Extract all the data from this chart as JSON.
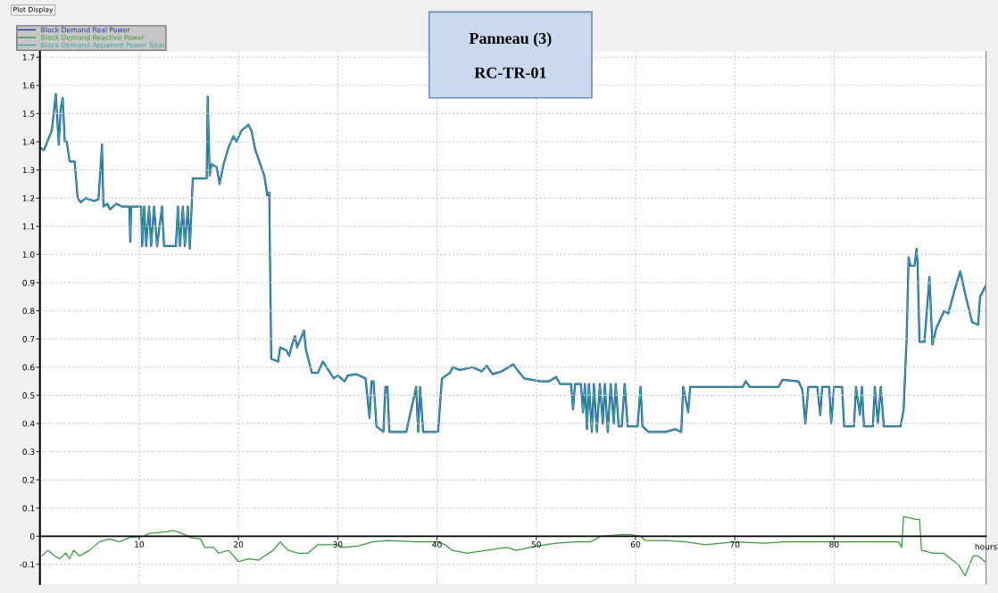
{
  "chart_data": {
    "type": "line",
    "title": "Panneau (3)",
    "subtitle": "RC-TR-01",
    "xlabel": "hours",
    "annotations": [
      "Plot Display"
    ],
    "xlim": [
      0,
      95.3
    ],
    "xticks": [
      10,
      20,
      30,
      40,
      50,
      60,
      70,
      80
    ],
    "ylim": [
      -0.17,
      1.72
    ],
    "yticks": [
      -0.1,
      0,
      0.1,
      0.2,
      0.3,
      0.4,
      0.5,
      0.6,
      0.7,
      0.8,
      0.9,
      {
        "value": 1.0,
        "label": "1.0"
      },
      1.1,
      1.2,
      1.3,
      1.4,
      1.5,
      1.6,
      1.7
    ],
    "grid": true,
    "legend": "top left",
    "line_style": "solid",
    "marker": "none",
    "series": [
      {
        "name": "Block Demand Apparent Power Total",
        "color": "#3aa6a6",
        "x": [
          0,
          0.4,
          1.2,
          1.6,
          1.9,
          2.1,
          2.3,
          2.5,
          2.7,
          3.0,
          3.5,
          3.8,
          4.1,
          4.6,
          5.4,
          5.9,
          6.25,
          6.4,
          6.8,
          7.05,
          7.7,
          8.3,
          9.0,
          9.1,
          9.2,
          10.2,
          10.3,
          10.5,
          10.7,
          11.0,
          11.2,
          11.5,
          11.8,
          12.3,
          12.5,
          13.7,
          13.9,
          14.1,
          14.4,
          14.6,
          14.9,
          15.1,
          15.4,
          16.8,
          16.9,
          17.1,
          17.3,
          17.8,
          18.1,
          18.5,
          19.0,
          19.5,
          19.8,
          20.3,
          21.0,
          21.3,
          21.7,
          22.1,
          22.6,
          22.9,
          23.1,
          23.2,
          23.3,
          24.0,
          24.2,
          24.8,
          25.1,
          25.4,
          25.7,
          25.9,
          26.6,
          26.8,
          27.4,
          28.0,
          28.5,
          29.6,
          30.0,
          30.7,
          31.0,
          31.9,
          32.8,
          33.2,
          33.4,
          33.6,
          33.9,
          34.6,
          34.8,
          35.0,
          35.2,
          36.9,
          37.9,
          38.1,
          38.3,
          38.6,
          40.1,
          40.5,
          41.3,
          41.6,
          42.3,
          43.6,
          44.5,
          45.0,
          45.6,
          46.5,
          47.7,
          48.3,
          48.8,
          50.4,
          51.3,
          52.0,
          52.4,
          53.5,
          53.7,
          53.9,
          54.5,
          54.7,
          54.9,
          55.1,
          55.3,
          55.6,
          55.8,
          56.1,
          56.4,
          56.7,
          56.9,
          57.2,
          57.5,
          57.8,
          58.0,
          58.3,
          58.6,
          58.9,
          59.2,
          60.2,
          60.5,
          60.7,
          61.3,
          63.0,
          64.0,
          64.6,
          64.8,
          65.3,
          65.5,
          70.8,
          71.1,
          71.5,
          74.4,
          74.8,
          76.4,
          76.8,
          77.1,
          77.4,
          78.3,
          78.6,
          78.8,
          79.5,
          79.7,
          80.0,
          80.8,
          81.0,
          82.0,
          82.2,
          82.6,
          82.8,
          83.0,
          83.9,
          84.1,
          84.4,
          84.7,
          85.0,
          86.7,
          87.0,
          87.3,
          87.5,
          87.7,
          88.1,
          88.3,
          88.4,
          88.6,
          89.1,
          89.6,
          89.9,
          90.3,
          91.1,
          91.5,
          92.1,
          92.7,
          93.2,
          93.9,
          94.5,
          94.7,
          95.3
        ],
        "values": [
          1.38,
          1.37,
          1.44,
          1.57,
          1.39,
          1.52,
          1.555,
          1.4,
          1.4,
          1.33,
          1.33,
          1.2,
          1.185,
          1.2,
          1.19,
          1.195,
          1.39,
          1.17,
          1.18,
          1.16,
          1.18,
          1.17,
          1.17,
          1.045,
          1.17,
          1.17,
          1.03,
          1.17,
          1.03,
          1.17,
          1.03,
          1.17,
          1.03,
          1.17,
          1.03,
          1.03,
          1.17,
          1.03,
          1.17,
          1.03,
          1.17,
          1.02,
          1.27,
          1.27,
          1.56,
          1.28,
          1.32,
          1.31,
          1.25,
          1.32,
          1.38,
          1.42,
          1.4,
          1.44,
          1.46,
          1.44,
          1.37,
          1.33,
          1.28,
          1.21,
          1.22,
          0.92,
          0.63,
          0.62,
          0.67,
          0.66,
          0.64,
          0.68,
          0.71,
          0.67,
          0.73,
          0.66,
          0.58,
          0.58,
          0.62,
          0.56,
          0.57,
          0.55,
          0.57,
          0.575,
          0.56,
          0.42,
          0.55,
          0.55,
          0.39,
          0.37,
          0.53,
          0.53,
          0.37,
          0.37,
          0.53,
          0.37,
          0.53,
          0.37,
          0.37,
          0.56,
          0.58,
          0.6,
          0.59,
          0.6,
          0.585,
          0.605,
          0.575,
          0.585,
          0.61,
          0.58,
          0.56,
          0.55,
          0.55,
          0.565,
          0.54,
          0.54,
          0.45,
          0.54,
          0.54,
          0.44,
          0.54,
          0.38,
          0.54,
          0.37,
          0.54,
          0.37,
          0.54,
          0.4,
          0.54,
          0.37,
          0.54,
          0.4,
          0.54,
          0.39,
          0.39,
          0.54,
          0.39,
          0.39,
          0.53,
          0.39,
          0.37,
          0.37,
          0.38,
          0.37,
          0.53,
          0.44,
          0.53,
          0.53,
          0.55,
          0.53,
          0.53,
          0.555,
          0.55,
          0.52,
          0.4,
          0.53,
          0.53,
          0.43,
          0.53,
          0.53,
          0.4,
          0.53,
          0.53,
          0.39,
          0.39,
          0.53,
          0.43,
          0.53,
          0.39,
          0.39,
          0.53,
          0.4,
          0.53,
          0.39,
          0.39,
          0.45,
          0.7,
          0.99,
          0.96,
          0.96,
          1.02,
          0.97,
          0.69,
          0.69,
          0.92,
          0.68,
          0.74,
          0.8,
          0.79,
          0.87,
          0.94,
          0.86,
          0.76,
          0.75,
          0.85,
          0.89
        ]
      },
      {
        "name": "Block Demand Real Power",
        "color": "#1a3f8f",
        "x": [
          0,
          0.4,
          1.2,
          1.6,
          1.9,
          2.1,
          2.3,
          2.5,
          2.7,
          3.0,
          3.5,
          3.8,
          4.1,
          4.6,
          5.4,
          5.9,
          6.25,
          6.4,
          6.8,
          7.05,
          7.7,
          8.3,
          9.0,
          9.1,
          9.2,
          10.2,
          10.3,
          10.5,
          10.7,
          11.0,
          11.2,
          11.5,
          11.8,
          12.3,
          12.5,
          13.7,
          13.9,
          14.1,
          14.4,
          14.6,
          14.9,
          15.1,
          15.4,
          16.8,
          16.9,
          17.1,
          17.3,
          17.8,
          18.1,
          18.5,
          19.0,
          19.5,
          19.8,
          20.3,
          21.0,
          21.3,
          21.7,
          22.1,
          22.6,
          22.9,
          23.1,
          23.2,
          23.3,
          24.0,
          24.2,
          24.8,
          25.1,
          25.4,
          25.7,
          25.9,
          26.6,
          26.8,
          27.4,
          28.0,
          28.5,
          29.6,
          30.0,
          30.7,
          31.0,
          31.9,
          32.8,
          33.2,
          33.4,
          33.6,
          33.9,
          34.6,
          34.8,
          35.0,
          35.2,
          36.9,
          37.9,
          38.1,
          38.3,
          38.6,
          40.1,
          40.5,
          41.3,
          41.6,
          42.3,
          43.6,
          44.5,
          45.0,
          45.6,
          46.5,
          47.7,
          48.3,
          48.8,
          50.4,
          51.3,
          52.0,
          52.4,
          53.5,
          53.7,
          53.9,
          54.5,
          54.7,
          54.9,
          55.1,
          55.3,
          55.6,
          55.8,
          56.1,
          56.4,
          56.7,
          56.9,
          57.2,
          57.5,
          57.8,
          58.0,
          58.3,
          58.6,
          58.9,
          59.2,
          60.2,
          60.5,
          60.7,
          61.3,
          63.0,
          64.0,
          64.6,
          64.8,
          65.3,
          65.5,
          70.8,
          71.1,
          71.5,
          74.4,
          74.8,
          76.4,
          76.8,
          77.1,
          77.4,
          78.3,
          78.6,
          78.8,
          79.5,
          79.7,
          80.0,
          80.8,
          81.0,
          82.0,
          82.2,
          82.6,
          82.8,
          83.0,
          83.9,
          84.1,
          84.4,
          84.7,
          85.0,
          86.7,
          87.0,
          87.3,
          87.5,
          87.7,
          88.1,
          88.3,
          88.4,
          88.6,
          89.1,
          89.6,
          89.9,
          90.3,
          91.1,
          91.5,
          92.1,
          92.7,
          93.2,
          93.9,
          94.5,
          94.7,
          95.3
        ],
        "values": [
          1.38,
          1.37,
          1.44,
          1.57,
          1.39,
          1.52,
          1.555,
          1.4,
          1.4,
          1.33,
          1.33,
          1.2,
          1.185,
          1.2,
          1.19,
          1.195,
          1.39,
          1.17,
          1.18,
          1.16,
          1.18,
          1.17,
          1.17,
          1.045,
          1.17,
          1.17,
          1.03,
          1.17,
          1.03,
          1.17,
          1.03,
          1.17,
          1.03,
          1.17,
          1.03,
          1.03,
          1.17,
          1.03,
          1.17,
          1.03,
          1.17,
          1.02,
          1.27,
          1.27,
          1.56,
          1.28,
          1.32,
          1.31,
          1.25,
          1.32,
          1.38,
          1.42,
          1.4,
          1.44,
          1.46,
          1.44,
          1.37,
          1.33,
          1.28,
          1.21,
          1.22,
          0.92,
          0.63,
          0.62,
          0.67,
          0.66,
          0.64,
          0.68,
          0.71,
          0.67,
          0.73,
          0.66,
          0.58,
          0.58,
          0.62,
          0.56,
          0.57,
          0.55,
          0.57,
          0.575,
          0.56,
          0.42,
          0.55,
          0.55,
          0.39,
          0.37,
          0.53,
          0.53,
          0.37,
          0.37,
          0.53,
          0.37,
          0.53,
          0.37,
          0.37,
          0.56,
          0.58,
          0.6,
          0.59,
          0.6,
          0.585,
          0.605,
          0.575,
          0.585,
          0.61,
          0.58,
          0.56,
          0.55,
          0.55,
          0.565,
          0.54,
          0.54,
          0.45,
          0.54,
          0.54,
          0.44,
          0.54,
          0.38,
          0.54,
          0.37,
          0.54,
          0.37,
          0.54,
          0.4,
          0.54,
          0.37,
          0.54,
          0.4,
          0.54,
          0.39,
          0.39,
          0.54,
          0.39,
          0.39,
          0.53,
          0.39,
          0.37,
          0.37,
          0.38,
          0.37,
          0.53,
          0.44,
          0.53,
          0.53,
          0.55,
          0.53,
          0.53,
          0.555,
          0.55,
          0.52,
          0.4,
          0.53,
          0.53,
          0.43,
          0.53,
          0.53,
          0.4,
          0.53,
          0.53,
          0.39,
          0.39,
          0.53,
          0.43,
          0.53,
          0.39,
          0.39,
          0.53,
          0.4,
          0.53,
          0.39,
          0.39,
          0.45,
          0.7,
          0.99,
          0.96,
          0.96,
          1.02,
          0.97,
          0.69,
          0.69,
          0.92,
          0.68,
          0.74,
          0.8,
          0.79,
          0.87,
          0.94,
          0.86,
          0.76,
          0.75,
          0.85,
          0.89
        ]
      },
      {
        "name": "Block Demand Reactive Power",
        "color": "#3a9a3a",
        "x": [
          0.2,
          0.8,
          1.5,
          2.0,
          2.6,
          3.0,
          3.4,
          4.0,
          5.0,
          6.0,
          7.0,
          8.0,
          9.0,
          10.5,
          11.0,
          12.5,
          13.5,
          14.3,
          15.2,
          16.2,
          16.6,
          17.5,
          18.0,
          19.0,
          20.0,
          21.0,
          22.0,
          23.5,
          24.2,
          25.0,
          26.0,
          27.0,
          28.0,
          30.0,
          30.5,
          32.0,
          33.5,
          35.0,
          38.0,
          40.0,
          40.8,
          41.5,
          43.0,
          45.0,
          47.0,
          48.0,
          50.0,
          52.0,
          54.0,
          55.5,
          56.5,
          58.5,
          59.5,
          60.5,
          61.0,
          63.0,
          65.0,
          67.0,
          70.0,
          73.0,
          75.0,
          78.0,
          80.0,
          83.0,
          86.5,
          86.8,
          87.0,
          88.2,
          88.6,
          88.8,
          90.0,
          91.0,
          92.5,
          93.2,
          94.0,
          94.5,
          95.2
        ],
        "values": [
          -0.07,
          -0.05,
          -0.07,
          -0.08,
          -0.06,
          -0.08,
          -0.05,
          -0.07,
          -0.05,
          -0.02,
          -0.01,
          -0.02,
          -0.005,
          0.0,
          0.01,
          0.015,
          0.02,
          0.01,
          -0.005,
          -0.01,
          -0.04,
          -0.04,
          -0.06,
          -0.05,
          -0.09,
          -0.08,
          -0.085,
          -0.05,
          -0.02,
          -0.05,
          -0.06,
          -0.06,
          -0.03,
          -0.03,
          -0.04,
          -0.035,
          -0.02,
          -0.015,
          -0.02,
          -0.02,
          -0.03,
          -0.05,
          -0.06,
          -0.05,
          -0.04,
          -0.05,
          -0.035,
          -0.025,
          -0.02,
          -0.02,
          0.0,
          0.005,
          0.005,
          0.0,
          -0.015,
          -0.015,
          -0.02,
          -0.03,
          -0.02,
          -0.025,
          -0.02,
          -0.02,
          -0.02,
          -0.02,
          -0.02,
          -0.04,
          0.07,
          0.06,
          0.06,
          -0.05,
          -0.06,
          -0.06,
          -0.1,
          -0.14,
          -0.07,
          -0.07,
          -0.09
        ]
      }
    ]
  }
}
